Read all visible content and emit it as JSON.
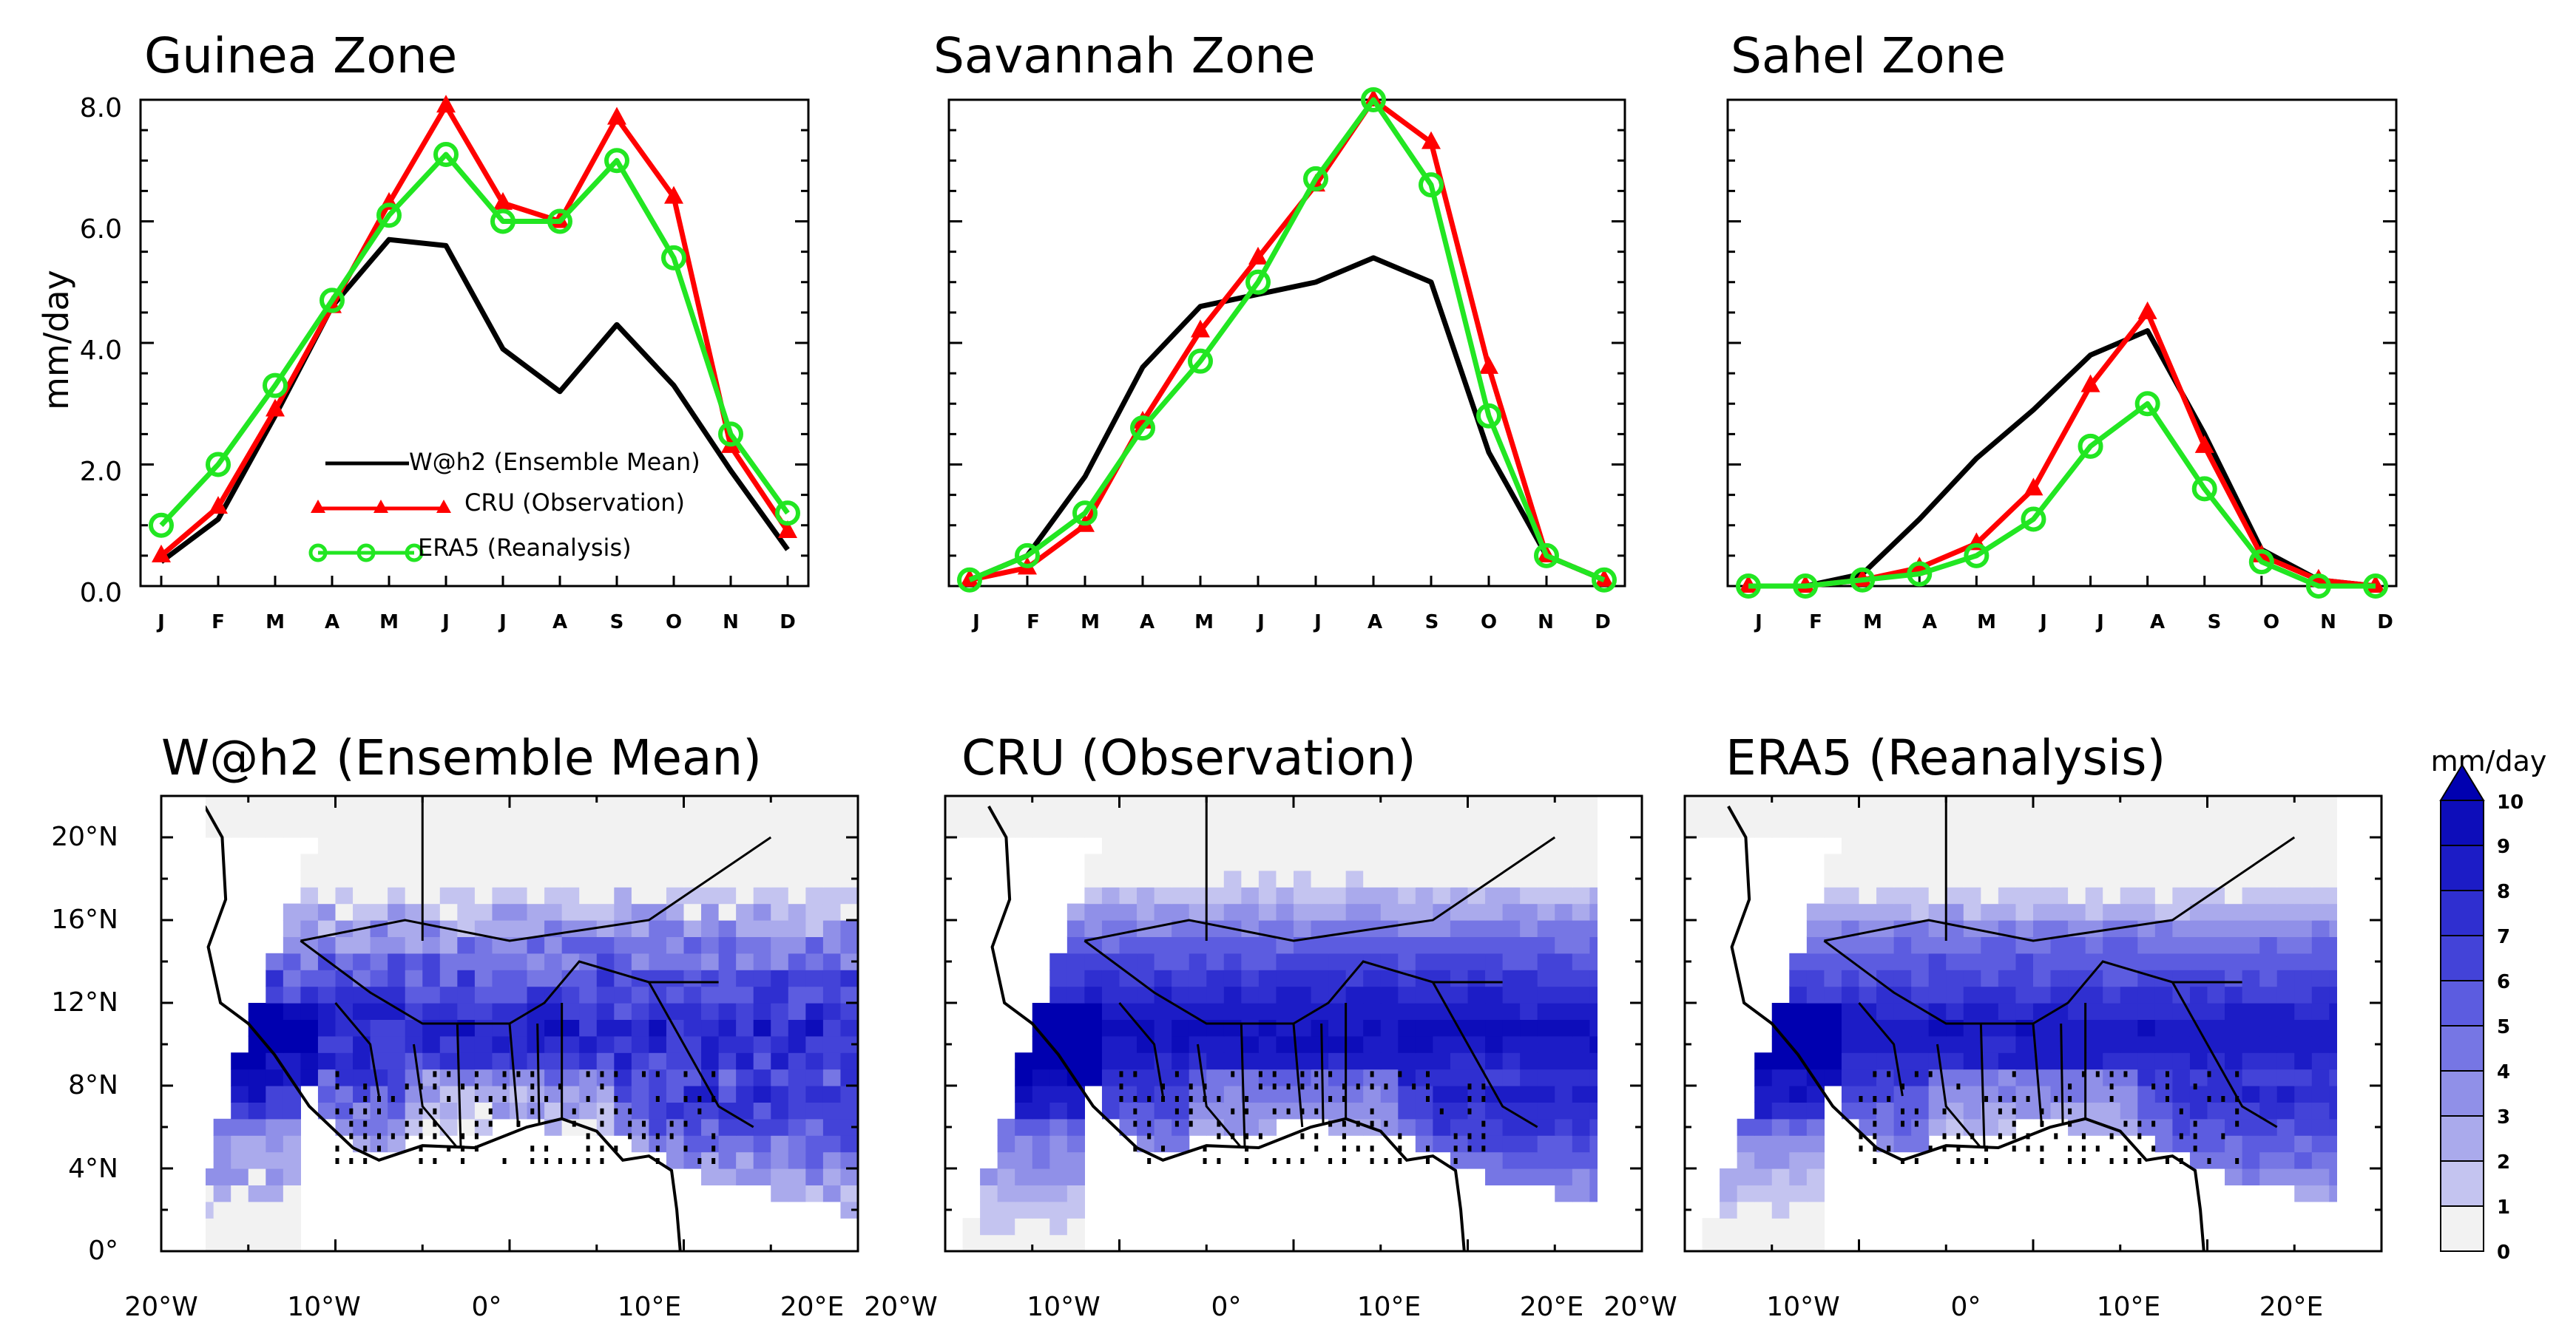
{
  "ylabel": "mm/day",
  "months": [
    "J",
    "F",
    "M",
    "A",
    "M",
    "J",
    "J",
    "A",
    "S",
    "O",
    "N",
    "D"
  ],
  "line_yticks": [
    "0.0",
    "2.0",
    "4.0",
    "6.0",
    "8.0"
  ],
  "map_lat_ticks": [
    "0°",
    "4°N",
    "8°N",
    "12°N",
    "16°N",
    "20°N"
  ],
  "map_lon_ticks": [
    "20°W",
    "10°W",
    "0°",
    "10°E",
    "20°E"
  ],
  "colorbar": {
    "unit": "mm/day",
    "labels": [
      "0",
      "1",
      "2",
      "3",
      "4",
      "5",
      "6",
      "7",
      "8",
      "9",
      "10"
    ],
    "colors": [
      "#f2f2f2",
      "#dcdcf4",
      "#c4c4f0",
      "#aaaaec",
      "#9090e8",
      "#7676e4",
      "#5c5ce0",
      "#4343d8",
      "#2f2fd0",
      "#1c1cc6",
      "#0d0dba",
      "#0000b0"
    ]
  },
  "colors": {
    "whah2": "#000000",
    "cru": "#ff0000",
    "era5": "#22e622"
  },
  "chart_data": [
    {
      "type": "line",
      "title": "Guinea Zone",
      "categories": [
        "J",
        "F",
        "M",
        "A",
        "M",
        "J",
        "J",
        "A",
        "S",
        "O",
        "N",
        "D"
      ],
      "ylabel": "mm/day",
      "ylim": [
        0,
        8
      ],
      "series": [
        {
          "name": "W@h2 (Ensemble Mean)",
          "values": [
            0.4,
            1.1,
            2.8,
            4.6,
            5.7,
            5.6,
            3.9,
            3.2,
            4.3,
            3.3,
            1.9,
            0.6
          ]
        },
        {
          "name": "CRU (Observation)",
          "values": [
            0.5,
            1.3,
            2.9,
            4.6,
            6.3,
            7.9,
            6.3,
            6.0,
            7.7,
            6.4,
            2.3,
            0.9
          ]
        },
        {
          "name": "ERA5 (Reanalysis)",
          "values": [
            1.0,
            2.0,
            3.3,
            4.7,
            6.1,
            7.1,
            6.0,
            6.0,
            7.0,
            5.4,
            2.5,
            1.2
          ]
        }
      ],
      "legend": [
        "W@h2 (Ensemble Mean)",
        "CRU (Observation)",
        "ERA5 (Reanalysis)"
      ]
    },
    {
      "type": "line",
      "title": "Savannah Zone",
      "categories": [
        "J",
        "F",
        "M",
        "A",
        "M",
        "J",
        "J",
        "A",
        "S",
        "O",
        "N",
        "D"
      ],
      "ylim": [
        0,
        8
      ],
      "series": [
        {
          "name": "W@h2 (Ensemble Mean)",
          "values": [
            0.1,
            0.5,
            1.8,
            3.6,
            4.6,
            4.8,
            5.0,
            5.4,
            5.0,
            2.2,
            0.5,
            0.1
          ]
        },
        {
          "name": "CRU (Observation)",
          "values": [
            0.1,
            0.3,
            1.0,
            2.7,
            4.2,
            5.4,
            6.6,
            8.0,
            7.3,
            3.6,
            0.5,
            0.1
          ]
        },
        {
          "name": "ERA5 (Reanalysis)",
          "values": [
            0.1,
            0.5,
            1.2,
            2.6,
            3.7,
            5.0,
            6.7,
            8.0,
            6.6,
            2.8,
            0.5,
            0.1
          ]
        }
      ]
    },
    {
      "type": "line",
      "title": "Sahel Zone",
      "categories": [
        "J",
        "F",
        "M",
        "A",
        "M",
        "J",
        "J",
        "A",
        "S",
        "O",
        "N",
        "D"
      ],
      "ylim": [
        0,
        8
      ],
      "series": [
        {
          "name": "W@h2 (Ensemble Mean)",
          "values": [
            0.0,
            0.0,
            0.2,
            1.1,
            2.1,
            2.9,
            3.8,
            4.2,
            2.5,
            0.6,
            0.1,
            0.0
          ]
        },
        {
          "name": "CRU (Observation)",
          "values": [
            0.0,
            0.0,
            0.1,
            0.3,
            0.7,
            1.6,
            3.3,
            4.5,
            2.3,
            0.5,
            0.1,
            0.0
          ]
        },
        {
          "name": "ERA5 (Reanalysis)",
          "values": [
            0.0,
            0.0,
            0.1,
            0.2,
            0.5,
            1.1,
            2.3,
            3.0,
            1.6,
            0.4,
            0.0,
            0.0
          ]
        }
      ]
    },
    {
      "type": "heatmap",
      "title": "W@h2 (Ensemble Mean)",
      "xlim": [
        -20,
        20
      ],
      "ylim": [
        0,
        22
      ],
      "zlim": [
        0,
        10
      ],
      "unit": "mm/day"
    },
    {
      "type": "heatmap",
      "title": "CRU (Observation)",
      "xlim": [
        -20,
        20
      ],
      "ylim": [
        0,
        22
      ],
      "zlim": [
        0,
        10
      ],
      "unit": "mm/day"
    },
    {
      "type": "heatmap",
      "title": "ERA5 (Reanalysis)",
      "xlim": [
        -20,
        20
      ],
      "ylim": [
        0,
        22
      ],
      "zlim": [
        0,
        10
      ],
      "unit": "mm/day"
    }
  ]
}
